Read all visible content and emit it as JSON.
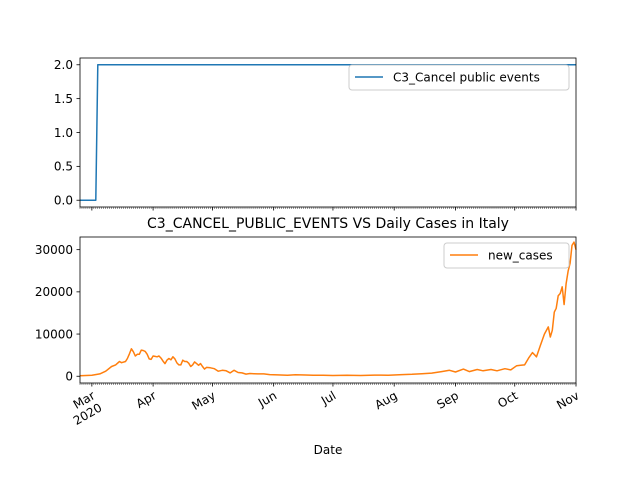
{
  "colors": {
    "series1": "#1f77b4",
    "series2": "#ff7f0e",
    "axis": "#000000",
    "legend_border": "#cccccc"
  },
  "chart_data": [
    {
      "type": "line",
      "title": "",
      "xlabel": "",
      "ylabel": "",
      "x_start": "2020-02-24",
      "x_end": "2020-11-01",
      "ylim": [
        -0.1,
        2.1
      ],
      "yticks": [
        0.0,
        0.5,
        1.0,
        1.5,
        2.0
      ],
      "ytick_labels": [
        "0.0",
        "0.5",
        "1.0",
        "1.5",
        "2.0"
      ],
      "legend_position": "top-right",
      "grid": false,
      "series": [
        {
          "name": "C3_Cancel public events",
          "points": [
            [
              "2020-02-24",
              0
            ],
            [
              "2020-03-03",
              0
            ],
            [
              "2020-03-04",
              2
            ],
            [
              "2020-11-01",
              2
            ]
          ]
        }
      ]
    },
    {
      "type": "line",
      "title": "C3_CANCEL_PUBLIC_EVENTS VS Daily Cases in Italy",
      "xlabel": "Date",
      "ylabel": "",
      "x_start": "2020-02-24",
      "x_end": "2020-11-01",
      "ylim": [
        -1600,
        33000
      ],
      "yticks": [
        0,
        10000,
        20000,
        30000
      ],
      "ytick_labels": [
        "0",
        "10000",
        "20000",
        "30000"
      ],
      "xtick_labels": [
        {
          "date": "2020-03-01",
          "label": "Mar",
          "sublabel": "2020"
        },
        {
          "date": "2020-04-01",
          "label": "Apr"
        },
        {
          "date": "2020-05-01",
          "label": "May"
        },
        {
          "date": "2020-06-01",
          "label": "Jun"
        },
        {
          "date": "2020-07-01",
          "label": "Jul"
        },
        {
          "date": "2020-08-01",
          "label": "Aug"
        },
        {
          "date": "2020-09-01",
          "label": "Sep"
        },
        {
          "date": "2020-10-01",
          "label": "Oct"
        },
        {
          "date": "2020-11-01",
          "label": "Nov"
        }
      ],
      "legend_position": "top-right",
      "grid": false,
      "series": [
        {
          "name": "new_cases",
          "points": [
            [
              "2020-02-24",
              100
            ],
            [
              "2020-03-01",
              250
            ],
            [
              "2020-03-05",
              550
            ],
            [
              "2020-03-08",
              1200
            ],
            [
              "2020-03-11",
              2300
            ],
            [
              "2020-03-13",
              2700
            ],
            [
              "2020-03-15",
              3500
            ],
            [
              "2020-03-16",
              3200
            ],
            [
              "2020-03-18",
              3500
            ],
            [
              "2020-03-19",
              4200
            ],
            [
              "2020-03-20",
              5300
            ],
            [
              "2020-03-21",
              6500
            ],
            [
              "2020-03-22",
              5800
            ],
            [
              "2020-03-23",
              4800
            ],
            [
              "2020-03-24",
              5200
            ],
            [
              "2020-03-25",
              5200
            ],
            [
              "2020-03-26",
              6200
            ],
            [
              "2020-03-27",
              6100
            ],
            [
              "2020-03-28",
              5900
            ],
            [
              "2020-03-29",
              5200
            ],
            [
              "2020-03-30",
              4100
            ],
            [
              "2020-03-31",
              4000
            ],
            [
              "2020-04-01",
              4800
            ],
            [
              "2020-04-02",
              4700
            ],
            [
              "2020-04-03",
              4600
            ],
            [
              "2020-04-04",
              4800
            ],
            [
              "2020-04-05",
              4300
            ],
            [
              "2020-04-06",
              3600
            ],
            [
              "2020-04-07",
              3000
            ],
            [
              "2020-04-08",
              3800
            ],
            [
              "2020-04-09",
              4200
            ],
            [
              "2020-04-10",
              3900
            ],
            [
              "2020-04-11",
              4600
            ],
            [
              "2020-04-12",
              4100
            ],
            [
              "2020-04-13",
              3200
            ],
            [
              "2020-04-14",
              2700
            ],
            [
              "2020-04-15",
              2700
            ],
            [
              "2020-04-16",
              3800
            ],
            [
              "2020-04-17",
              3500
            ],
            [
              "2020-04-18",
              3500
            ],
            [
              "2020-04-19",
              3100
            ],
            [
              "2020-04-20",
              2300
            ],
            [
              "2020-04-21",
              2700
            ],
            [
              "2020-04-22",
              3400
            ],
            [
              "2020-04-23",
              3000
            ],
            [
              "2020-04-24",
              2600
            ],
            [
              "2020-04-25",
              3000
            ],
            [
              "2020-04-26",
              2300
            ],
            [
              "2020-04-27",
              1700
            ],
            [
              "2020-04-28",
              2100
            ],
            [
              "2020-04-30",
              2000
            ],
            [
              "2020-05-02",
              1800
            ],
            [
              "2020-05-04",
              1200
            ],
            [
              "2020-05-06",
              1400
            ],
            [
              "2020-05-08",
              1300
            ],
            [
              "2020-05-10",
              800
            ],
            [
              "2020-05-12",
              1400
            ],
            [
              "2020-05-14",
              900
            ],
            [
              "2020-05-16",
              800
            ],
            [
              "2020-05-18",
              500
            ],
            [
              "2020-05-20",
              650
            ],
            [
              "2020-05-22",
              600
            ],
            [
              "2020-05-24",
              550
            ],
            [
              "2020-05-27",
              550
            ],
            [
              "2020-05-30",
              400
            ],
            [
              "2020-06-03",
              320
            ],
            [
              "2020-06-08",
              250
            ],
            [
              "2020-06-12",
              350
            ],
            [
              "2020-06-17",
              300
            ],
            [
              "2020-06-21",
              250
            ],
            [
              "2020-06-26",
              250
            ],
            [
              "2020-07-01",
              180
            ],
            [
              "2020-07-08",
              220
            ],
            [
              "2020-07-15",
              180
            ],
            [
              "2020-07-22",
              280
            ],
            [
              "2020-07-29",
              250
            ],
            [
              "2020-08-05",
              380
            ],
            [
              "2020-08-10",
              450
            ],
            [
              "2020-08-15",
              600
            ],
            [
              "2020-08-20",
              750
            ],
            [
              "2020-08-25",
              1100
            ],
            [
              "2020-08-29",
              1400
            ],
            [
              "2020-09-01",
              1000
            ],
            [
              "2020-09-05",
              1700
            ],
            [
              "2020-09-08",
              1100
            ],
            [
              "2020-09-12",
              1600
            ],
            [
              "2020-09-15",
              1300
            ],
            [
              "2020-09-19",
              1600
            ],
            [
              "2020-09-22",
              1300
            ],
            [
              "2020-09-26",
              1800
            ],
            [
              "2020-09-29",
              1500
            ],
            [
              "2020-10-02",
              2500
            ],
            [
              "2020-10-04",
              2600
            ],
            [
              "2020-10-06",
              2700
            ],
            [
              "2020-10-08",
              4300
            ],
            [
              "2020-10-10",
              5600
            ],
            [
              "2020-10-12",
              4600
            ],
            [
              "2020-10-14",
              7300
            ],
            [
              "2020-10-16",
              10000
            ],
            [
              "2020-10-18",
              11700
            ],
            [
              "2020-10-19",
              9300
            ],
            [
              "2020-10-20",
              10900
            ],
            [
              "2020-10-21",
              15200
            ],
            [
              "2020-10-22",
              16100
            ],
            [
              "2020-10-23",
              19100
            ],
            [
              "2020-10-24",
              19600
            ],
            [
              "2020-10-25",
              21200
            ],
            [
              "2020-10-26",
              17000
            ],
            [
              "2020-10-27",
              21900
            ],
            [
              "2020-10-28",
              24900
            ],
            [
              "2020-10-29",
              26800
            ],
            [
              "2020-10-30",
              31000
            ],
            [
              "2020-10-31",
              31800
            ],
            [
              "2020-11-01",
              30000
            ]
          ]
        }
      ]
    }
  ]
}
